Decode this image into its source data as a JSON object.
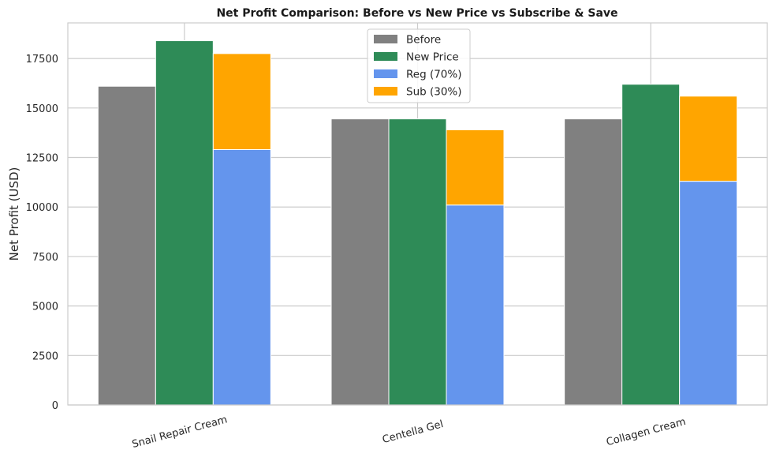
{
  "chart_data": {
    "type": "bar",
    "title": "Net Profit Comparison: Before vs New Price vs Subscribe & Save",
    "xlabel": "",
    "ylabel": "Net Profit (USD)",
    "ylim": [
      0,
      19300
    ],
    "yticks": [
      0,
      2500,
      5000,
      7500,
      10000,
      12500,
      15000,
      17500
    ],
    "grid": true,
    "legend_position": "top-center",
    "categories": [
      "Snail Repair Cream",
      "Centella Gel",
      "Collagen Cream"
    ],
    "series": [
      {
        "name": "Before",
        "values": [
          16100,
          14450,
          14450
        ],
        "color": "#808080",
        "group": "before"
      },
      {
        "name": "New Price",
        "values": [
          18400,
          14450,
          16200
        ],
        "color": "#2e8b57",
        "group": "new"
      },
      {
        "name": "Reg (70%)",
        "values": [
          12900,
          10100,
          11300
        ],
        "color": "#6495ed",
        "group": "subscribe",
        "stack": "base"
      },
      {
        "name": "Sub (30%)",
        "values": [
          4850,
          3800,
          4300
        ],
        "color": "#ffa500",
        "group": "subscribe",
        "stack": "top"
      }
    ]
  }
}
